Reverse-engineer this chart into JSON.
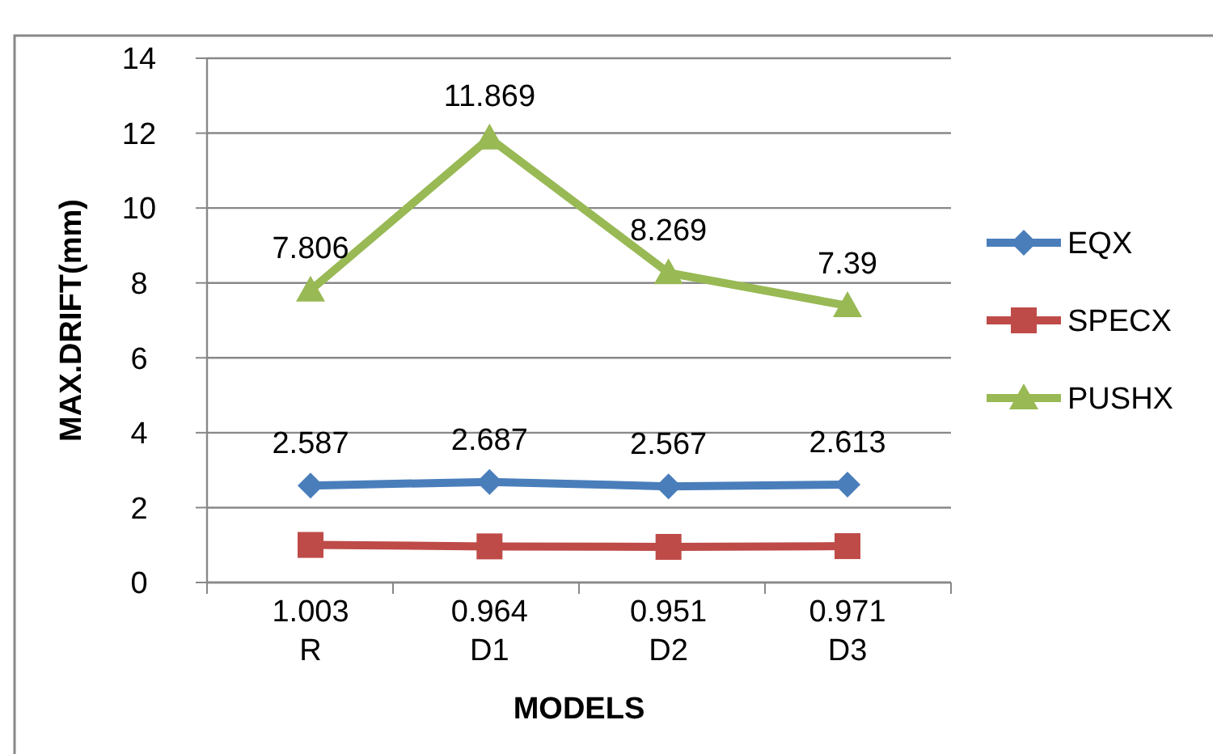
{
  "chart_data": {
    "type": "line",
    "xlabel": "MODELS",
    "ylabel": "MAX.DRIFT(mm)",
    "categories": [
      "R",
      "D1",
      "D2",
      "D3"
    ],
    "series": [
      {
        "name": "EQX",
        "color": "#4a7ebb",
        "marker": "diamond",
        "values": [
          2.587,
          2.687,
          2.567,
          2.613
        ]
      },
      {
        "name": "SPECX",
        "color": "#be4b48",
        "marker": "square",
        "values": [
          1.003,
          0.964,
          0.951,
          0.971
        ]
      },
      {
        "name": "PUSHX",
        "color": "#98b954",
        "marker": "triangle",
        "values": [
          7.806,
          11.869,
          8.269,
          7.39
        ]
      }
    ],
    "ylim": [
      0,
      14
    ],
    "yticks": [
      0,
      2,
      4,
      6,
      8,
      10,
      12,
      14
    ],
    "grid": "y",
    "legend": "right",
    "data_labels": true
  }
}
